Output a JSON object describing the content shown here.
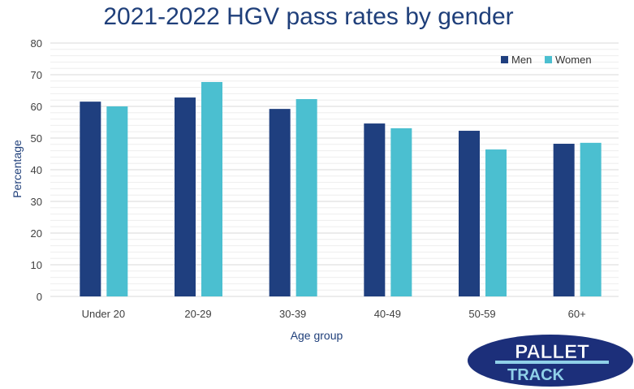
{
  "chart_data": {
    "type": "bar",
    "title": "2021-2022 HGV pass rates by gender",
    "xlabel": "Age group",
    "ylabel": "Percentage",
    "ylim": [
      0,
      80
    ],
    "yticks": [
      0,
      10,
      20,
      30,
      40,
      50,
      60,
      70,
      80
    ],
    "grid": true,
    "legend_position": "top-right",
    "categories": [
      "Under 20",
      "20-29",
      "30-39",
      "40-49",
      "50-59",
      "60+"
    ],
    "series": [
      {
        "name": "Men",
        "color": "#1f3f7f",
        "values": [
          61.5,
          62.8,
          59.2,
          54.6,
          52.3,
          48.2
        ]
      },
      {
        "name": "Women",
        "color": "#4bbfd0",
        "values": [
          60.0,
          67.7,
          62.3,
          53.1,
          46.4,
          48.5
        ]
      }
    ]
  },
  "logo": {
    "line1": "PALLET",
    "line2": "TRACK"
  }
}
